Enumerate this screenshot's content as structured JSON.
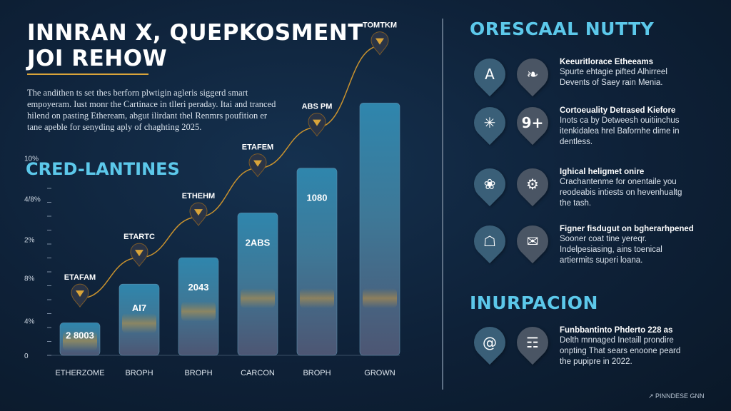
{
  "header": {
    "title_line1": "INNRAN X, QUEPKOSMENT",
    "title_line2": "JOI REHOW",
    "intro_lines": [
      "The andithen ts set thes berforn plwtigin agleris siggerd smart",
      "empoyeram. Iust monr the Cartinace in tlleri peraday. Itai and tranced",
      "hilend on pasting Etheream, abgut ilirdant thel Renmrs poufition er",
      "tane apeble for senyding aply of chaghting 2025."
    ]
  },
  "chart_heading": "CRED-LANTINES",
  "chart_data": {
    "type": "bar",
    "categories": [
      "ETHERZOME",
      "BROPH",
      "BROPH",
      "CARCON",
      "BROPH",
      "GROWN"
    ],
    "values": [
      1.6,
      3.5,
      4.8,
      7.0,
      9.2,
      12.4
    ],
    "bar_labels": [
      "2 8003",
      "AI7",
      "2043",
      "2ABS",
      "1080",
      ""
    ],
    "point_labels": [
      "ETAFAM",
      "ETARTC",
      "ETHEHM",
      "ETAFEM",
      "ABS PM",
      "TOMTKM"
    ],
    "line_values": [
      2.8,
      4.8,
      6.8,
      9.2,
      11.2,
      15.2
    ],
    "y_ticks": [
      "0",
      "4%",
      "8%",
      "2%",
      "4/8%",
      "10%"
    ],
    "y_tick_values": [
      0,
      1.7,
      3.8,
      5.7,
      7.7,
      9.7
    ],
    "ylim": [
      0,
      16
    ],
    "grid": false,
    "bar_color": "#3c6a88",
    "line_color": "#c9922e"
  },
  "right": {
    "section1_title": "ORESCAAL NUTTY",
    "items": [
      {
        "icon_left": "A",
        "icon_right": "leaf-icon",
        "title": "Keeuritlorace Etheeams",
        "body": [
          "Spurte ehtagie pifted Alhirreel",
          "Devents of Saey rain Menia."
        ]
      },
      {
        "icon_left": "network-icon",
        "icon_right": "9+",
        "title": "Cortoeuality Detrased Kiefore",
        "body": [
          "Inots ca by Detweesh ouitiinchus",
          "itenkidalea hrel Bafornhe dime in",
          "dentless."
        ]
      },
      {
        "icon_left": "globe-icon",
        "icon_right": "gear-icon",
        "title": "Ighical heligmet onire",
        "body": [
          "Crachantenme for onentaile you",
          "reodeabis intiests on hevenhualtg",
          "the tash."
        ]
      },
      {
        "icon_left": "building-icon",
        "icon_right": "chat-icon",
        "title": "Figner fisdugut on bgherarhpened",
        "body": [
          "Sooner coat tine yereqr.",
          "Indelpesiasing, ains toenical",
          "artiermits superi loana."
        ]
      }
    ],
    "section2_title": "INURPACION",
    "item5": {
      "icon_left": "@",
      "icon_right": "document-icon",
      "title": "Funbbantinto Phderto 228 as",
      "body": [
        "Delth mnnaged Inetaill prondire",
        "onpting That sears enoone peard",
        "the pupipre in 2022."
      ]
    }
  },
  "footer": "↗ PINNDESE GNN",
  "colors": {
    "accent_cyan": "#5cc8ea",
    "accent_gold": "#d9a43a",
    "background": "#0e2138"
  }
}
